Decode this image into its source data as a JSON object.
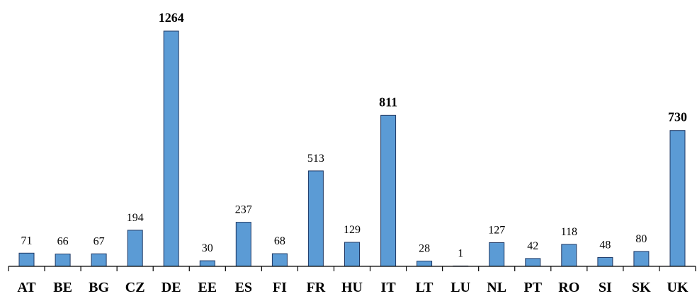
{
  "chart_data": {
    "type": "bar",
    "categories": [
      "AT",
      "BE",
      "BG",
      "CZ",
      "DE",
      "EE",
      "ES",
      "FI",
      "FR",
      "HU",
      "IT",
      "LT",
      "LU",
      "NL",
      "PT",
      "RO",
      "SI",
      "SK",
      "UK"
    ],
    "values": [
      71,
      66,
      67,
      194,
      1264,
      30,
      237,
      68,
      513,
      129,
      811,
      28,
      1,
      127,
      42,
      118,
      48,
      80,
      730
    ],
    "value_labels": [
      "71",
      "66",
      "67",
      "194",
      "1264",
      "30",
      "237",
      "68",
      "513",
      "129",
      "811",
      "28",
      "1",
      "127",
      "42",
      "118",
      "48",
      "80",
      "730"
    ],
    "bold_value_labels": [
      "DE",
      "IT",
      "UK"
    ],
    "ylim": [
      0,
      1264
    ],
    "grid": false,
    "legend": "none",
    "colors": {
      "bar_fill": "#5b9bd5",
      "bar_stroke": "#1f3864"
    }
  }
}
